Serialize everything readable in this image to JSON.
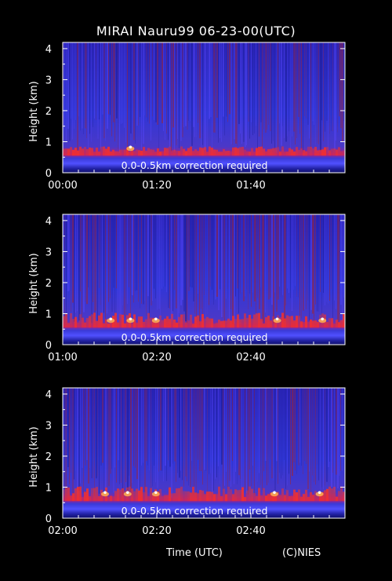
{
  "title": "MIRAI Nauru99 06-23-00(UTC)",
  "footer": {
    "time_label": "Time (UTC)",
    "credit": "(C)NIES"
  },
  "chart_data": [
    {
      "type": "heatmap",
      "ylabel": "Height (km)",
      "ylim": [
        0,
        4.2
      ],
      "yticks": [
        0,
        1,
        2,
        3,
        4
      ],
      "xtick_labels": [
        "00:00",
        "01:20",
        "01:40"
      ],
      "annotation": "0.0-0.5km correction required",
      "cloud_base_km": 0.6,
      "bright_spots_frac": [
        0.24
      ],
      "colors": {
        "background": "#2a2fd0",
        "signal": "#e0201a",
        "ground": "#10106a"
      }
    },
    {
      "type": "heatmap",
      "ylabel": "Height (km)",
      "ylim": [
        0,
        4.2
      ],
      "yticks": [
        0,
        1,
        2,
        3,
        4
      ],
      "xtick_labels": [
        "01:00",
        "02:20",
        "02:40"
      ],
      "annotation": "0.0-0.5km correction required",
      "cloud_base_km": 0.6,
      "bright_spots_frac": [
        0.17,
        0.24,
        0.33,
        0.76,
        0.92
      ],
      "colors": {
        "background": "#2a2fd0",
        "signal": "#e0201a",
        "ground": "#10106a"
      }
    },
    {
      "type": "heatmap",
      "ylabel": "Height (km)",
      "ylim": [
        0,
        4.2
      ],
      "yticks": [
        0,
        1,
        2,
        3,
        4
      ],
      "xtick_labels": [
        "02:00",
        "02:20",
        "02:40"
      ],
      "annotation": "0.0-0.5km correction required",
      "cloud_base_km": 0.6,
      "bright_spots_frac": [
        0.15,
        0.23,
        0.33,
        0.75,
        0.91
      ],
      "colors": {
        "background": "#2a2fd0",
        "signal": "#e0201a",
        "ground": "#10106a"
      }
    }
  ]
}
